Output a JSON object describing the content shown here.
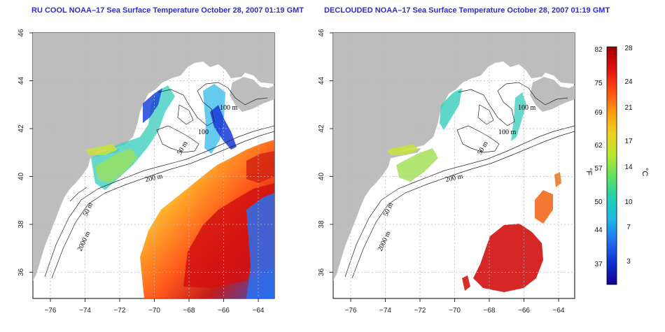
{
  "titles": {
    "left": "RU COOL NOAA–17 Sea Surface Temperature October 28, 2007 01:19 GMT",
    "right": "DECLOUDED NOAA–17 Sea Surface Temperature October 28, 2007 01:19 GMT"
  },
  "axes": {
    "lon_ticks": [
      "−76",
      "−74",
      "−72",
      "−70",
      "−68",
      "−66",
      "−64"
    ],
    "lat_ticks": [
      "46",
      "44",
      "42",
      "40",
      "38",
      "36"
    ]
  },
  "contour_labels": {
    "left": [
      "100 m",
      "100",
      "50 m",
      "200 m",
      "50 m",
      "2000 m"
    ],
    "right": [
      "100 m",
      "100 m",
      "50 m",
      "200 m",
      "50 m",
      "2000 m"
    ]
  },
  "colorbar": {
    "unit_f": "°F",
    "unit_c": "°C",
    "f_labels": [
      "82",
      "75",
      "69",
      "62",
      "57",
      "50",
      "44",
      "37"
    ],
    "c_labels": [
      "28",
      "24",
      "21",
      "17",
      "14",
      "10",
      "7",
      "3"
    ],
    "colors": [
      "#a00000",
      "#e01010",
      "#ff4a10",
      "#ff9a10",
      "#f0d020",
      "#b8e830",
      "#60e060",
      "#20d0b0",
      "#20b8e8",
      "#2070f0",
      "#1030d0",
      "#100090"
    ]
  },
  "colors": {
    "land": "#bdbdbd",
    "grid": "#bbbbbb",
    "title": "#2b2bd0"
  }
}
